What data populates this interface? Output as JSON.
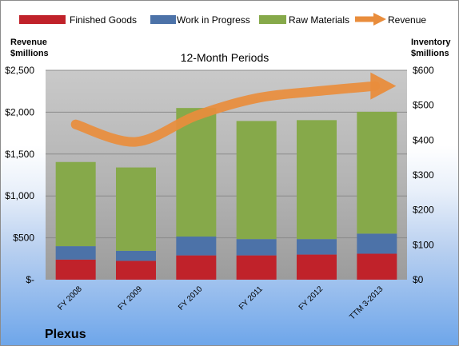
{
  "chart_data": {
    "type": "bar",
    "stacked": true,
    "title": "12-Month Periods",
    "company": "Plexus",
    "categories": [
      "FY 2008",
      "FY 2009",
      "FY 2010",
      "FY 2011",
      "FY 2012",
      "TTM 3-2013"
    ],
    "y_left": {
      "title_line1": "Revenue",
      "title_line2": "$millions",
      "ylim": [
        0,
        2500
      ],
      "ticks": [
        0,
        500,
        1000,
        1500,
        2000,
        2500
      ],
      "tick_labels": [
        "$-",
        "$500",
        "$1,000",
        "$1,500",
        "$2,000",
        "$2,500"
      ]
    },
    "y_right": {
      "title_line1": "Inventory",
      "title_line2": "$millions",
      "ylim": [
        0,
        600
      ],
      "ticks": [
        0,
        100,
        200,
        300,
        400,
        500,
        600
      ],
      "tick_labels": [
        "$0",
        "$100",
        "$200",
        "$300",
        "$400",
        "$500",
        "$600"
      ]
    },
    "series": [
      {
        "name": "Finished Goods",
        "color": "#c0222a",
        "axis": "left",
        "values": [
          240,
          225,
          290,
          290,
          300,
          310
        ]
      },
      {
        "name": "Work in Progress",
        "color": "#4c72a8",
        "axis": "left",
        "values": [
          160,
          120,
          225,
          195,
          185,
          240
        ]
      },
      {
        "name": "Raw Materials",
        "color": "#86a94a",
        "axis": "left",
        "values": [
          1005,
          995,
          1535,
          1410,
          1420,
          1455
        ]
      },
      {
        "name": "Revenue",
        "color": "#e98d3c",
        "axis": "right",
        "type": "line",
        "values": [
          445,
          395,
          470,
          520,
          540,
          555
        ]
      }
    ],
    "grid": true,
    "legend_position": "top"
  }
}
